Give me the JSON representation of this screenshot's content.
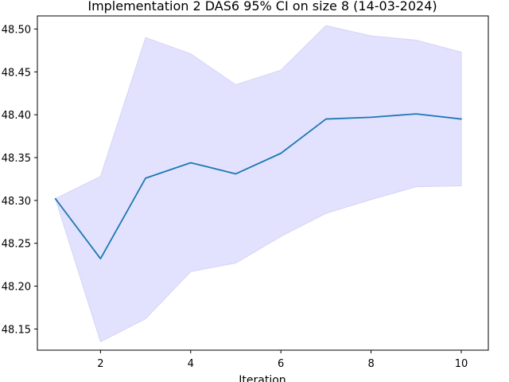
{
  "chart_data": {
    "type": "line",
    "title": "Implementation 2 DAS6 95% CI on size 8 (14-03-2024)",
    "xlabel": "Iteration",
    "ylabel": "",
    "xlim": [
      0.6,
      10.6
    ],
    "ylim": [
      48.1253,
      48.5153
    ],
    "x_ticks": [
      2,
      4,
      6,
      8,
      10
    ],
    "y_ticks": [
      48.15,
      48.2,
      48.25,
      48.3,
      48.35,
      48.4,
      48.45,
      48.5
    ],
    "x_tick_labels": [
      "2",
      "4",
      "6",
      "8",
      "10"
    ],
    "y_tick_labels": [
      "48.15",
      "48.20",
      "48.25",
      "48.30",
      "48.35",
      "48.40",
      "48.45",
      "48.50"
    ],
    "grid": false,
    "legend": "none",
    "x": [
      1,
      2,
      3,
      4,
      5,
      6,
      7,
      8,
      9,
      10
    ],
    "series": [
      {
        "values": [
          48.302,
          48.232,
          48.326,
          48.344,
          48.331,
          48.355,
          48.395,
          48.397,
          48.401,
          48.395
        ],
        "color": "#1f77b4"
      }
    ],
    "ci_band": {
      "lower": [
        48.302,
        48.135,
        48.162,
        48.217,
        48.227,
        48.258,
        48.285,
        48.301,
        48.316,
        48.317
      ],
      "upper": [
        48.302,
        48.328,
        48.49,
        48.471,
        48.435,
        48.452,
        48.504,
        48.492,
        48.487,
        48.473
      ],
      "fill_color": "#e2e2ff",
      "edge_color": "#d4d4f7"
    }
  }
}
